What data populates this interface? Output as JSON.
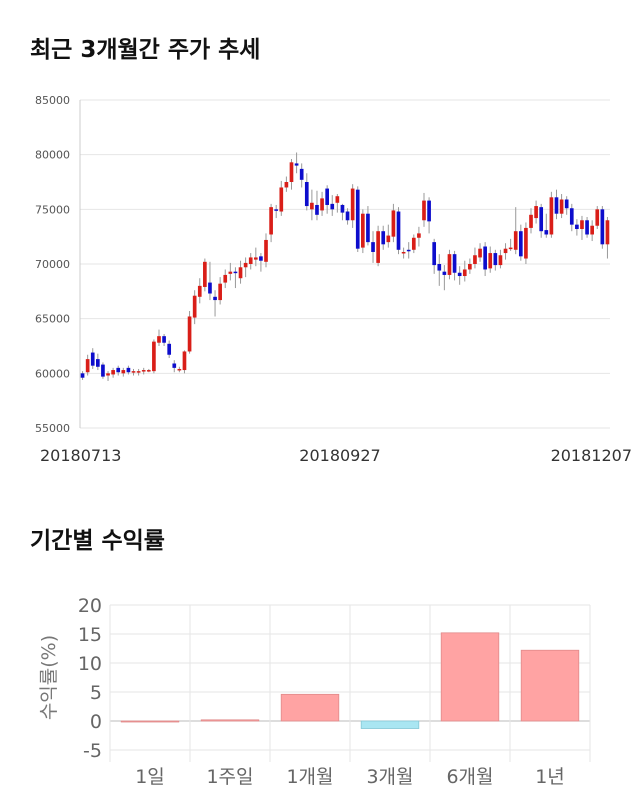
{
  "sections": {
    "price_title": "최근 3개월간 주가 추세",
    "returns_title": "기간별 수익률"
  },
  "colors": {
    "up": "#d91e18",
    "down": "#0d0dcc",
    "wick": "#999999",
    "grid": "#e6e6e6",
    "bar_positive": "#ffa3a3",
    "bar_negative": "#a9e6f2"
  },
  "chart_data": [
    {
      "type": "candlestick",
      "title": "최근 3개월간 주가 추세",
      "x_labels": [
        "20180713",
        "20180927",
        "20181207"
      ],
      "y_ticks": [
        55000,
        60000,
        65000,
        70000,
        75000,
        80000,
        85000
      ],
      "ylim": [
        55000,
        85000
      ],
      "grid": true,
      "candles": [
        [
          60000,
          59600,
          60200,
          59400
        ],
        [
          60100,
          61300,
          61700,
          59800
        ],
        [
          61900,
          60700,
          62300,
          60400
        ],
        [
          61300,
          60600,
          61800,
          60300
        ],
        [
          60800,
          59700,
          61000,
          59500
        ],
        [
          59800,
          60000,
          60200,
          59300
        ],
        [
          59900,
          60300,
          60500,
          59600
        ],
        [
          60500,
          60100,
          60700,
          59800
        ],
        [
          60000,
          60300,
          60500,
          59700
        ],
        [
          60500,
          60100,
          60700,
          59900
        ],
        [
          60100,
          60200,
          60400,
          59800
        ],
        [
          60100,
          60200,
          60400,
          59800
        ],
        [
          60200,
          60300,
          60500,
          59900
        ],
        [
          60300,
          60300,
          60400,
          60100
        ],
        [
          60200,
          62900,
          63100,
          60000
        ],
        [
          62800,
          63400,
          64000,
          62500
        ],
        [
          63400,
          62800,
          63600,
          62500
        ],
        [
          62700,
          61700,
          63000,
          61400
        ],
        [
          60900,
          60500,
          61200,
          60100
        ],
        [
          60300,
          60400,
          60600,
          60100
        ],
        [
          60300,
          62000,
          62100,
          60000
        ],
        [
          62000,
          65200,
          65700,
          61800
        ],
        [
          65100,
          67100,
          67600,
          64500
        ],
        [
          67000,
          68000,
          68700,
          66400
        ],
        [
          67900,
          70200,
          70500,
          67500
        ],
        [
          68300,
          67300,
          70200,
          66700
        ],
        [
          67000,
          66700,
          67600,
          65200
        ],
        [
          66700,
          68200,
          68800,
          66300
        ],
        [
          68300,
          69000,
          69500,
          67800
        ],
        [
          69100,
          69300,
          70100,
          68500
        ],
        [
          69300,
          69200,
          69700,
          67800
        ],
        [
          68700,
          69700,
          70300,
          68200
        ],
        [
          69700,
          70100,
          70600,
          68800
        ],
        [
          70000,
          70600,
          71000,
          69500
        ],
        [
          70400,
          70600,
          71500,
          69800
        ],
        [
          70700,
          70300,
          71000,
          69300
        ],
        [
          70200,
          72200,
          72800,
          69700
        ],
        [
          72700,
          75200,
          75500,
          72000
        ],
        [
          75000,
          74900,
          75400,
          74200
        ],
        [
          74800,
          77000,
          77600,
          74400
        ],
        [
          77000,
          77500,
          78000,
          76600
        ],
        [
          77500,
          79300,
          79600,
          76800
        ],
        [
          79200,
          79000,
          80200,
          78300
        ],
        [
          78700,
          77700,
          79200,
          77000
        ],
        [
          77500,
          75300,
          78300,
          74900
        ],
        [
          75000,
          75600,
          76800,
          74000
        ],
        [
          75400,
          74500,
          76700,
          74000
        ],
        [
          74900,
          76000,
          76600,
          74400
        ],
        [
          76900,
          75400,
          77200,
          74600
        ],
        [
          75500,
          75000,
          76300,
          74400
        ],
        [
          75600,
          76200,
          76400,
          74700
        ],
        [
          75400,
          74700,
          75500,
          74000
        ],
        [
          74800,
          74000,
          75100,
          73600
        ],
        [
          74000,
          76900,
          77300,
          73300
        ],
        [
          76800,
          71400,
          77100,
          71100
        ],
        [
          71500,
          74600,
          75000,
          71000
        ],
        [
          74600,
          72000,
          75300,
          71700
        ],
        [
          72000,
          71100,
          73000,
          70100
        ],
        [
          70100,
          73000,
          73500,
          69800
        ],
        [
          73000,
          71800,
          73500,
          71300
        ],
        [
          72000,
          72600,
          73600,
          71500
        ],
        [
          72500,
          74900,
          75500,
          72000
        ],
        [
          74800,
          71300,
          75200,
          70900
        ],
        [
          71000,
          71100,
          71500,
          70500
        ],
        [
          71300,
          71200,
          72000,
          70500
        ],
        [
          71300,
          72400,
          72700,
          71000
        ],
        [
          72400,
          72800,
          73400,
          71600
        ],
        [
          74000,
          75800,
          76500,
          73400
        ],
        [
          75800,
          73900,
          76100,
          72800
        ],
        [
          72000,
          69900,
          72300,
          69100
        ],
        [
          70000,
          69400,
          70900,
          68000
        ],
        [
          69300,
          69000,
          69900,
          67600
        ],
        [
          69000,
          70900,
          71300,
          68600
        ],
        [
          70900,
          69200,
          71200,
          68500
        ],
        [
          69200,
          68900,
          69800,
          68100
        ],
        [
          68900,
          69500,
          70300,
          68400
        ],
        [
          69500,
          70000,
          70500,
          69100
        ],
        [
          70000,
          70800,
          71500,
          69600
        ],
        [
          70600,
          71400,
          71900,
          70200
        ],
        [
          71600,
          69500,
          72000,
          68900
        ],
        [
          69600,
          71000,
          71600,
          69200
        ],
        [
          71000,
          69900,
          71300,
          69400
        ],
        [
          69900,
          70800,
          71300,
          69600
        ],
        [
          71000,
          71400,
          71900,
          70400
        ],
        [
          71500,
          71500,
          72300,
          71200
        ],
        [
          71300,
          73000,
          75200,
          70900
        ],
        [
          73000,
          70700,
          73600,
          70300
        ],
        [
          70500,
          73300,
          73800,
          70000
        ],
        [
          73300,
          74500,
          75100,
          72800
        ],
        [
          74200,
          75300,
          75800,
          73700
        ],
        [
          75200,
          73000,
          75500,
          72400
        ],
        [
          73100,
          72700,
          74600,
          72400
        ],
        [
          72700,
          76100,
          76600,
          72400
        ],
        [
          76100,
          74600,
          76800,
          74100
        ],
        [
          74600,
          75900,
          76400,
          74200
        ],
        [
          75900,
          75100,
          76200,
          74500
        ],
        [
          75100,
          73600,
          75500,
          73000
        ],
        [
          73600,
          73200,
          74100,
          72600
        ],
        [
          73200,
          74000,
          74400,
          72200
        ],
        [
          74000,
          72700,
          74300,
          72400
        ],
        [
          72700,
          73500,
          74000,
          72100
        ],
        [
          73500,
          75000,
          75300,
          73200
        ],
        [
          75000,
          71800,
          75300,
          71400
        ],
        [
          71800,
          74000,
          74300,
          70500
        ]
      ]
    },
    {
      "type": "bar",
      "title": "기간별 수익률",
      "categories": [
        "1일",
        "1주일",
        "1개월",
        "3개월",
        "6개월",
        "1년"
      ],
      "values": [
        0,
        0.2,
        4.6,
        -1.3,
        15.2,
        12.2
      ],
      "ylabel": "수익률(%)",
      "y_ticks": [
        -5,
        0,
        5,
        10,
        15,
        20
      ],
      "ylim": [
        -5,
        20
      ],
      "grid": true
    }
  ]
}
